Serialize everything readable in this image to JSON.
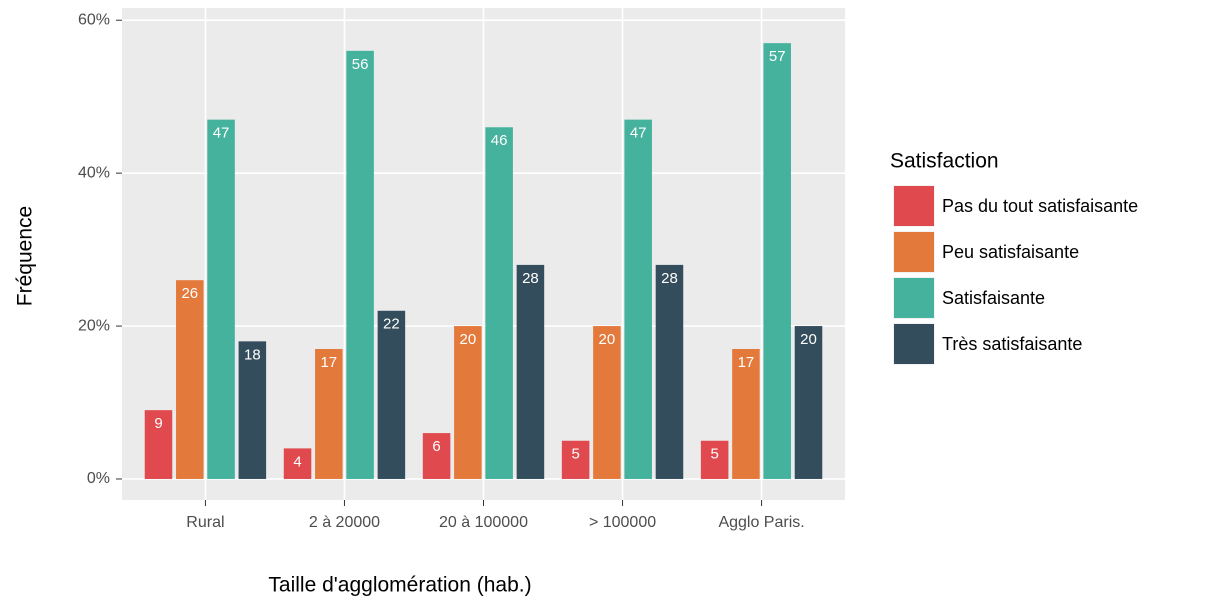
{
  "chart_data": {
    "type": "bar",
    "x_label": "Taille d'agglomération (hab.)",
    "y_label": "Fréquence",
    "legend_title": "Satisfaction",
    "legend_position": "right",
    "grid": true,
    "categories": [
      "Rural",
      "2 à 20000",
      "20 à 100000",
      "> 100000",
      "Agglo Paris."
    ],
    "series": [
      {
        "name": "Pas du tout satisfaisante",
        "color": "#e04a4e",
        "values": [
          9,
          4,
          6,
          5,
          5
        ]
      },
      {
        "name": "Peu satisfaisante",
        "color": "#e37a3c",
        "values": [
          26,
          17,
          20,
          20,
          17
        ]
      },
      {
        "name": "Satisfaisante",
        "color": "#45b29d",
        "values": [
          47,
          56,
          46,
          47,
          57
        ]
      },
      {
        "name": "Très satisfaisante",
        "color": "#334d5c",
        "values": [
          18,
          22,
          28,
          28,
          20
        ]
      }
    ],
    "ylim": [
      -2.75,
      61.6
    ],
    "yticks": [
      {
        "value": 0,
        "label": "0%"
      },
      {
        "value": 20,
        "label": "20%"
      },
      {
        "value": 40,
        "label": "40%"
      },
      {
        "value": 60,
        "label": "60%"
      }
    ]
  }
}
